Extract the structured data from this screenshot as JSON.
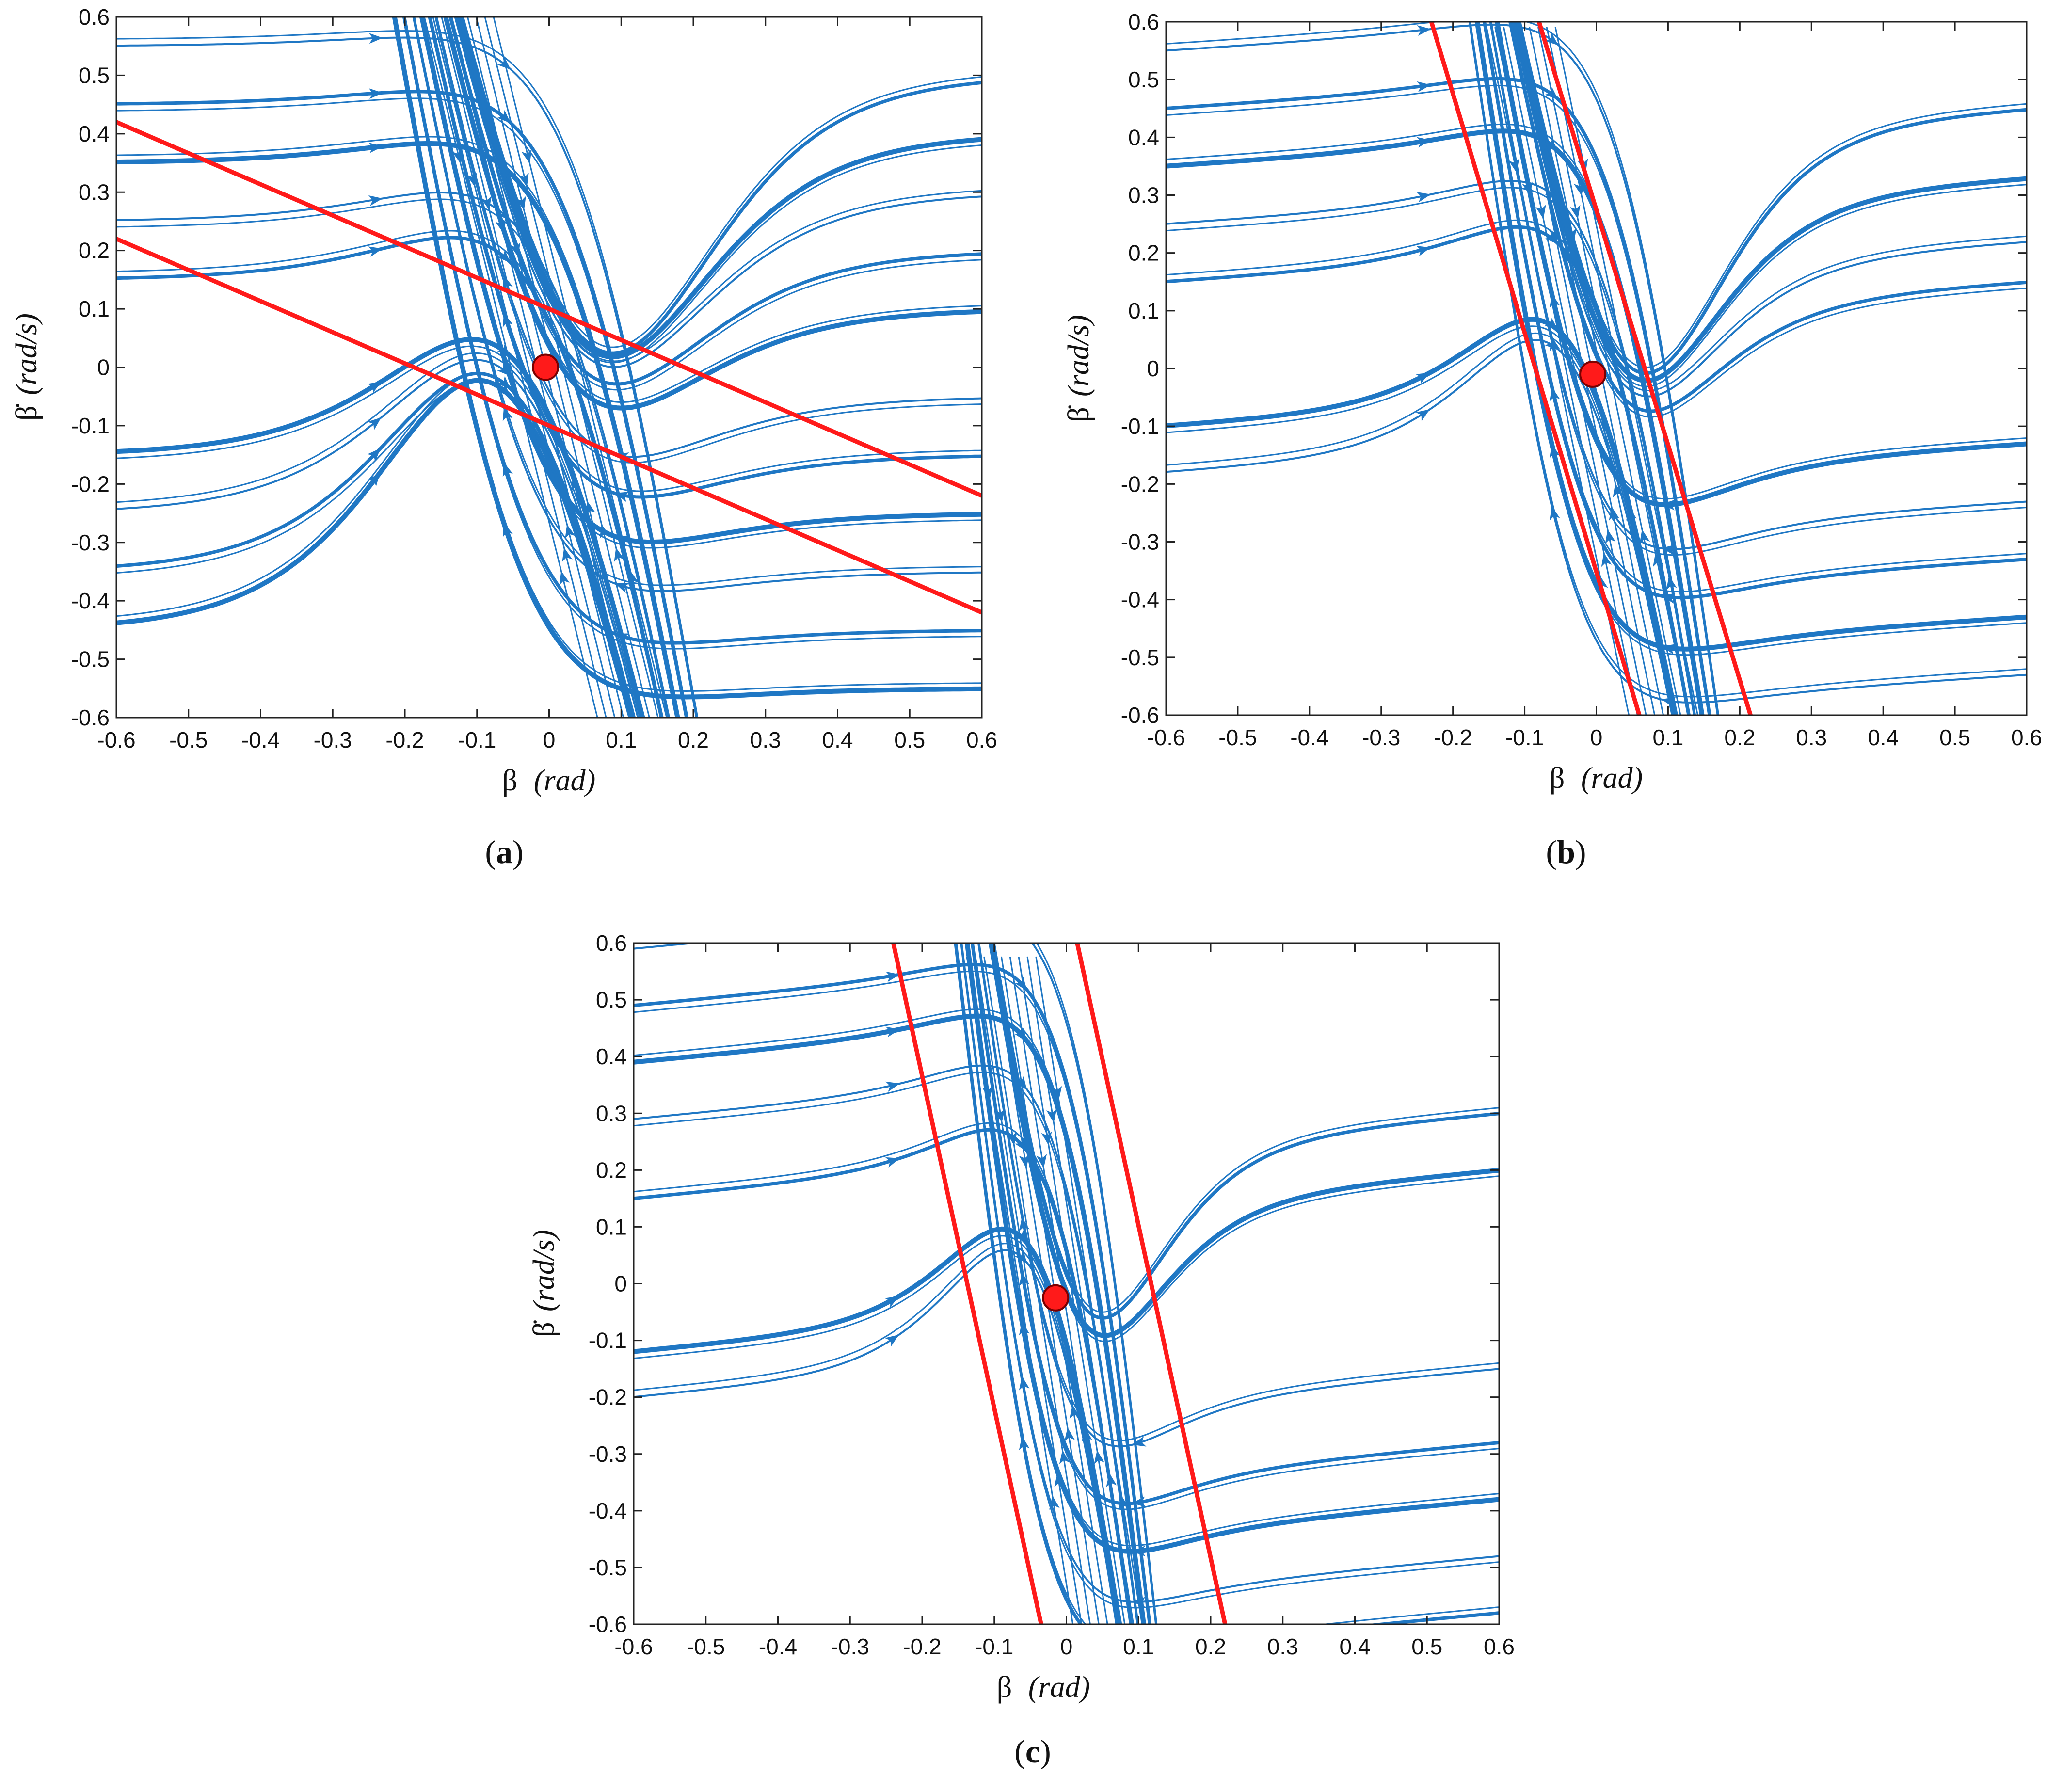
{
  "chart_data": [
    {
      "panel": "a",
      "type": "line",
      "subtype": "phase-portrait",
      "caption_label": "a",
      "xlabel_symbol": "β",
      "xlabel_unit": "(rad)",
      "ylabel_symbol": "β̇",
      "ylabel_unit": "(rad/s)",
      "xlim": [
        -0.6,
        0.6
      ],
      "ylim": [
        -0.6,
        0.6
      ],
      "xticks": [
        "-0.6",
        "-0.5",
        "-0.4",
        "-0.3",
        "-0.2",
        "-0.1",
        "0",
        "0.1",
        "0.2",
        "0.3",
        "0.4",
        "0.5",
        "0.6"
      ],
      "yticks": [
        "-0.6",
        "-0.5",
        "-0.4",
        "-0.3",
        "-0.2",
        "-0.1",
        "0",
        "0.1",
        "0.2",
        "0.3",
        "0.4",
        "0.5",
        "0.6"
      ],
      "equilibrium": {
        "x": -0.005,
        "y": 0.0
      },
      "boundary_lines": [
        {
          "name": "upper-bound",
          "x": [
            -0.6,
            0.6
          ],
          "y": [
            0.42,
            -0.22
          ]
        },
        {
          "name": "lower-bound",
          "x": [
            -0.6,
            0.6
          ],
          "y": [
            0.22,
            -0.42
          ]
        }
      ],
      "left_levels": [
        0.55,
        0.45,
        0.35,
        0.25,
        0.15,
        -0.15,
        -0.25,
        -0.35,
        -0.45
      ],
      "right_levels": [
        0.5,
        0.4,
        0.3,
        0.2,
        0.1,
        -0.05,
        -0.15,
        -0.25,
        -0.35,
        -0.45,
        -0.55
      ],
      "levels_y_slope": 0.0,
      "transition_slope": -5.0,
      "transition_width": 0.09
    },
    {
      "panel": "b",
      "type": "line",
      "subtype": "phase-portrait",
      "caption_label": "b",
      "xlabel_symbol": "β",
      "xlabel_unit": "(rad)",
      "ylabel_symbol": "β̇",
      "ylabel_unit": "(rad/s)",
      "xlim": [
        -0.6,
        0.6
      ],
      "ylim": [
        -0.6,
        0.6
      ],
      "xticks": [
        "-0.6",
        "-0.5",
        "-0.4",
        "-0.3",
        "-0.2",
        "-0.1",
        "0",
        "0.1",
        "0.2",
        "0.3",
        "0.4",
        "0.5",
        "0.6"
      ],
      "yticks": [
        "-0.6",
        "-0.5",
        "-0.4",
        "-0.3",
        "-0.2",
        "-0.1",
        "0",
        "0.1",
        "0.2",
        "0.3",
        "0.4",
        "0.5",
        "0.6"
      ],
      "equilibrium": {
        "x": -0.005,
        "y": -0.01
      },
      "boundary_lines": [
        {
          "name": "left-bound",
          "x": [
            -0.23,
            0.06
          ],
          "y": [
            0.6,
            -0.6
          ]
        },
        {
          "name": "right-bound",
          "x": [
            -0.08,
            0.215
          ],
          "y": [
            0.6,
            -0.6
          ]
        }
      ],
      "left_levels": [
        0.55,
        0.45,
        0.35,
        0.25,
        0.15,
        -0.1,
        -0.18
      ],
      "right_levels": [
        0.45,
        0.33,
        0.22,
        0.15,
        -0.13,
        -0.23,
        -0.33,
        -0.43,
        -0.53
      ],
      "levels_y_slope": 0.08,
      "transition_slope": -6.0,
      "transition_width": 0.07
    },
    {
      "panel": "c",
      "type": "line",
      "subtype": "phase-portrait",
      "caption_label": "c",
      "xlabel_symbol": "β",
      "xlabel_unit": "(rad)",
      "ylabel_symbol": "β̇",
      "ylabel_unit": "(rad/s)",
      "xlim": [
        -0.6,
        0.6
      ],
      "ylim": [
        -0.6,
        0.6
      ],
      "xticks": [
        "-0.6",
        "-0.5",
        "-0.4",
        "-0.3",
        "-0.2",
        "-0.1",
        "0",
        "0.1",
        "0.2",
        "0.3",
        "0.4",
        "0.5",
        "0.6"
      ],
      "yticks": [
        "-0.6",
        "-0.5",
        "-0.4",
        "-0.3",
        "-0.2",
        "-0.1",
        "0",
        "0.1",
        "0.2",
        "0.3",
        "0.4",
        "0.5",
        "0.6"
      ],
      "equilibrium": {
        "x": -0.015,
        "y": -0.025
      },
      "boundary_lines": [
        {
          "name": "left-bound",
          "x": [
            -0.24,
            -0.035
          ],
          "y": [
            0.6,
            -0.6
          ]
        },
        {
          "name": "right-bound",
          "x": [
            0.015,
            0.22
          ],
          "y": [
            0.6,
            -0.6
          ]
        }
      ],
      "left_levels": [
        0.59,
        0.49,
        0.39,
        0.29,
        0.15,
        -0.12,
        -0.2
      ],
      "right_levels": [
        0.3,
        0.2,
        -0.15,
        -0.28,
        -0.38,
        -0.48,
        -0.58
      ],
      "levels_y_slope": 0.12,
      "transition_slope": -8.0,
      "transition_width": 0.06
    }
  ]
}
